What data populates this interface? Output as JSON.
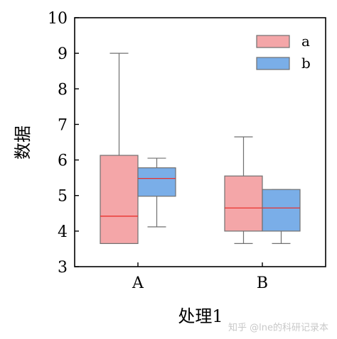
{
  "chart_data": {
    "type": "box",
    "title": "",
    "xlabel": "处理1",
    "ylabel": "数据",
    "categories": [
      "A",
      "B"
    ],
    "ylim": [
      3,
      10
    ],
    "yticks": [
      3,
      4,
      5,
      6,
      7,
      8,
      9,
      10
    ],
    "grid": false,
    "legend_position": "top-right",
    "series": [
      {
        "name": "a",
        "color": "#f4a6a8",
        "edge_color": "#707070",
        "median_color": "#e8312c",
        "boxes": [
          {
            "category": "A",
            "min": 3.65,
            "q1": 3.65,
            "median": 4.42,
            "q3": 6.13,
            "max": 9.0
          },
          {
            "category": "B",
            "min": 3.65,
            "q1": 4.0,
            "median": 4.65,
            "q3": 5.55,
            "max": 6.65
          }
        ]
      },
      {
        "name": "b",
        "color": "#7aaee8",
        "edge_color": "#707070",
        "median_color": "#e8312c",
        "boxes": [
          {
            "category": "A",
            "min": 4.12,
            "q1": 4.98,
            "median": 5.48,
            "q3": 5.78,
            "max": 6.05
          },
          {
            "category": "B",
            "min": 3.65,
            "q1": 4.0,
            "median": 4.65,
            "q3": 5.17,
            "max": 5.17
          }
        ]
      }
    ]
  },
  "watermark": "知乎 @lne的科研记录本"
}
